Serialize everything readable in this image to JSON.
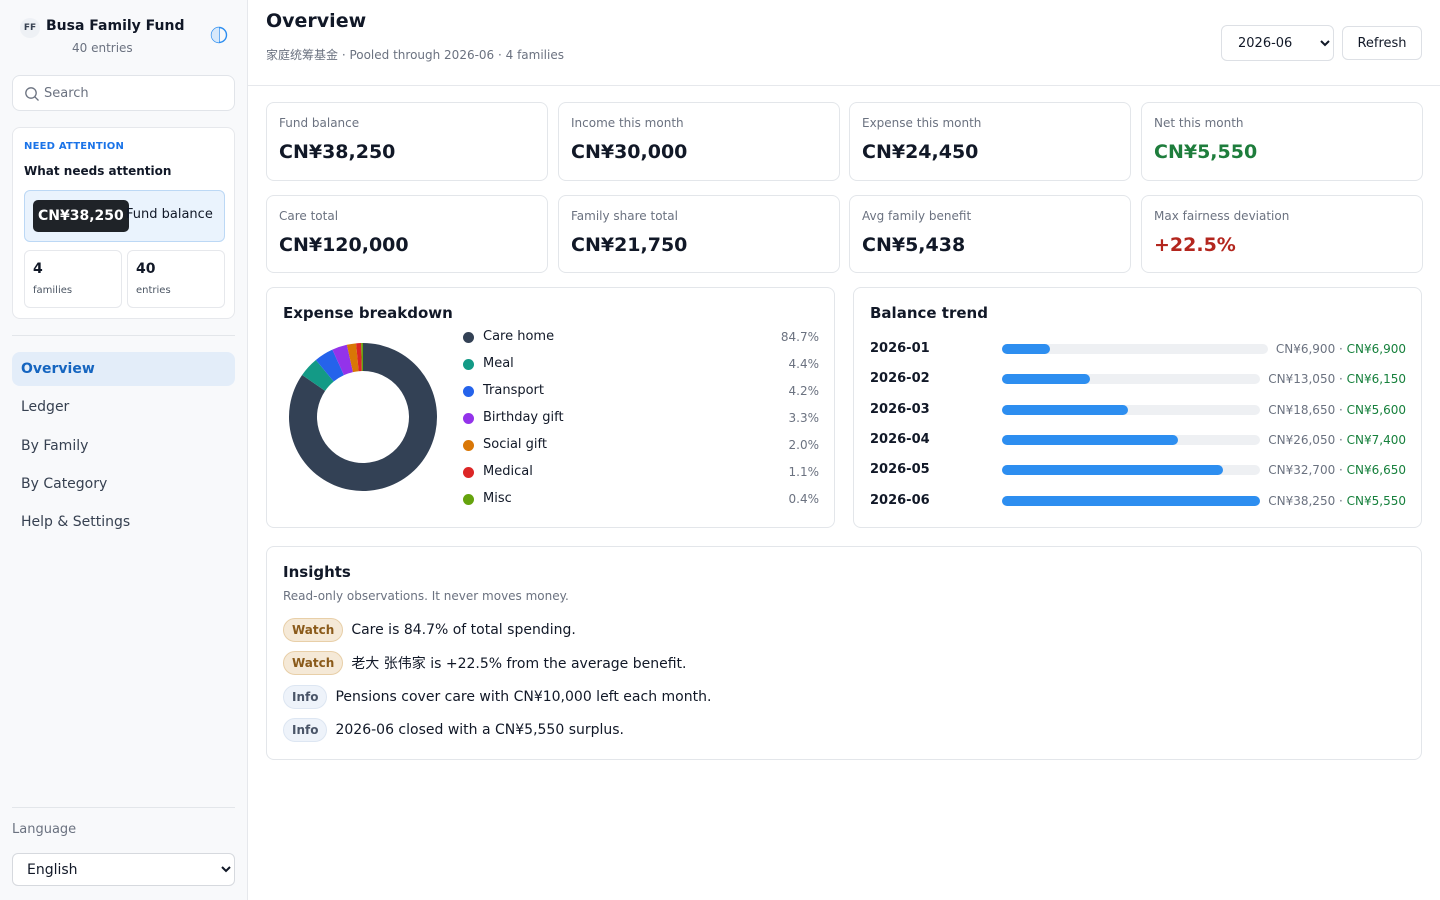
{
  "sidebar": {
    "brand_logo": "FF",
    "brand_name": "Busa Family Fund",
    "brand_sub": "40 entries",
    "search_placeholder": "Search",
    "attention": {
      "kicker": "NEED ATTENTION",
      "title": "What needs attention",
      "balance_amount": "CN¥38,250",
      "balance_label": "Fund balance",
      "families_num": "4",
      "families_label": "families",
      "entries_num": "40",
      "entries_label": "entries"
    },
    "nav": [
      {
        "label": "Overview",
        "active": true
      },
      {
        "label": "Ledger"
      },
      {
        "label": "By Family"
      },
      {
        "label": "By Category"
      },
      {
        "label": "Help & Settings"
      }
    ],
    "language_label": "Language",
    "language_value": "English"
  },
  "header": {
    "title": "Overview",
    "subtitle": "家庭统筹基金 · Pooled through 2026-06 · 4 families",
    "month_value": "2026-06",
    "refresh_label": "Refresh"
  },
  "stats": [
    {
      "label": "Fund balance",
      "value": "CN¥38,250"
    },
    {
      "label": "Income this month",
      "value": "CN¥30,000"
    },
    {
      "label": "Expense this month",
      "value": "CN¥24,450"
    },
    {
      "label": "Net this month",
      "value": "CN¥5,550",
      "color": "#1e7d3c"
    },
    {
      "label": "Care total",
      "value": "CN¥120,000"
    },
    {
      "label": "Family share total",
      "value": "CN¥21,750"
    },
    {
      "label": "Avg family benefit",
      "value": "CN¥5,438"
    },
    {
      "label": "Max fairness deviation",
      "value": "+22.5%",
      "color": "#b3261e"
    }
  ],
  "expense": {
    "title": "Expense breakdown",
    "chart_data": {
      "type": "pie",
      "categories": [
        "Care home",
        "Meal",
        "Transport",
        "Birthday gift",
        "Social gift",
        "Medical",
        "Misc"
      ],
      "values": [
        84.7,
        4.4,
        4.2,
        3.3,
        2.0,
        1.1,
        0.4
      ],
      "labels": [
        "84.7%",
        "4.4%",
        "4.2%",
        "3.3%",
        "2.0%",
        "1.1%",
        "0.4%"
      ],
      "colors": [
        "#334155",
        "#139a86",
        "#2563eb",
        "#9333ea",
        "#d97706",
        "#dc2626",
        "#65a30d"
      ]
    }
  },
  "trend": {
    "title": "Balance trend",
    "chart_data": {
      "type": "bar",
      "categories": [
        "2026-01",
        "2026-02",
        "2026-03",
        "2026-04",
        "2026-05",
        "2026-06"
      ],
      "values": [
        6900,
        13050,
        18650,
        26050,
        32700,
        38250
      ],
      "balance_labels": [
        "CN¥6,900",
        "CN¥13,050",
        "CN¥18,650",
        "CN¥26,050",
        "CN¥32,700",
        "CN¥38,250"
      ],
      "net_labels": [
        "CN¥6,900",
        "CN¥6,150",
        "CN¥5,600",
        "CN¥7,400",
        "CN¥6,650",
        "CN¥5,550"
      ],
      "separator": " · ",
      "max": 38250
    }
  },
  "insights": {
    "title": "Insights",
    "subtitle": "Read-only observations. It never moves money.",
    "items": [
      {
        "badge": "Watch",
        "kind": "watch",
        "text": "Care is 84.7% of total spending."
      },
      {
        "badge": "Watch",
        "kind": "watch",
        "text": "老大 张伟家 is +22.5% from the average benefit."
      },
      {
        "badge": "Info",
        "kind": "info",
        "text": "Pensions cover care with CN¥10,000 left each month."
      },
      {
        "badge": "Info",
        "kind": "info",
        "text": "2026-06 closed with a CN¥5,550 surplus."
      }
    ]
  }
}
